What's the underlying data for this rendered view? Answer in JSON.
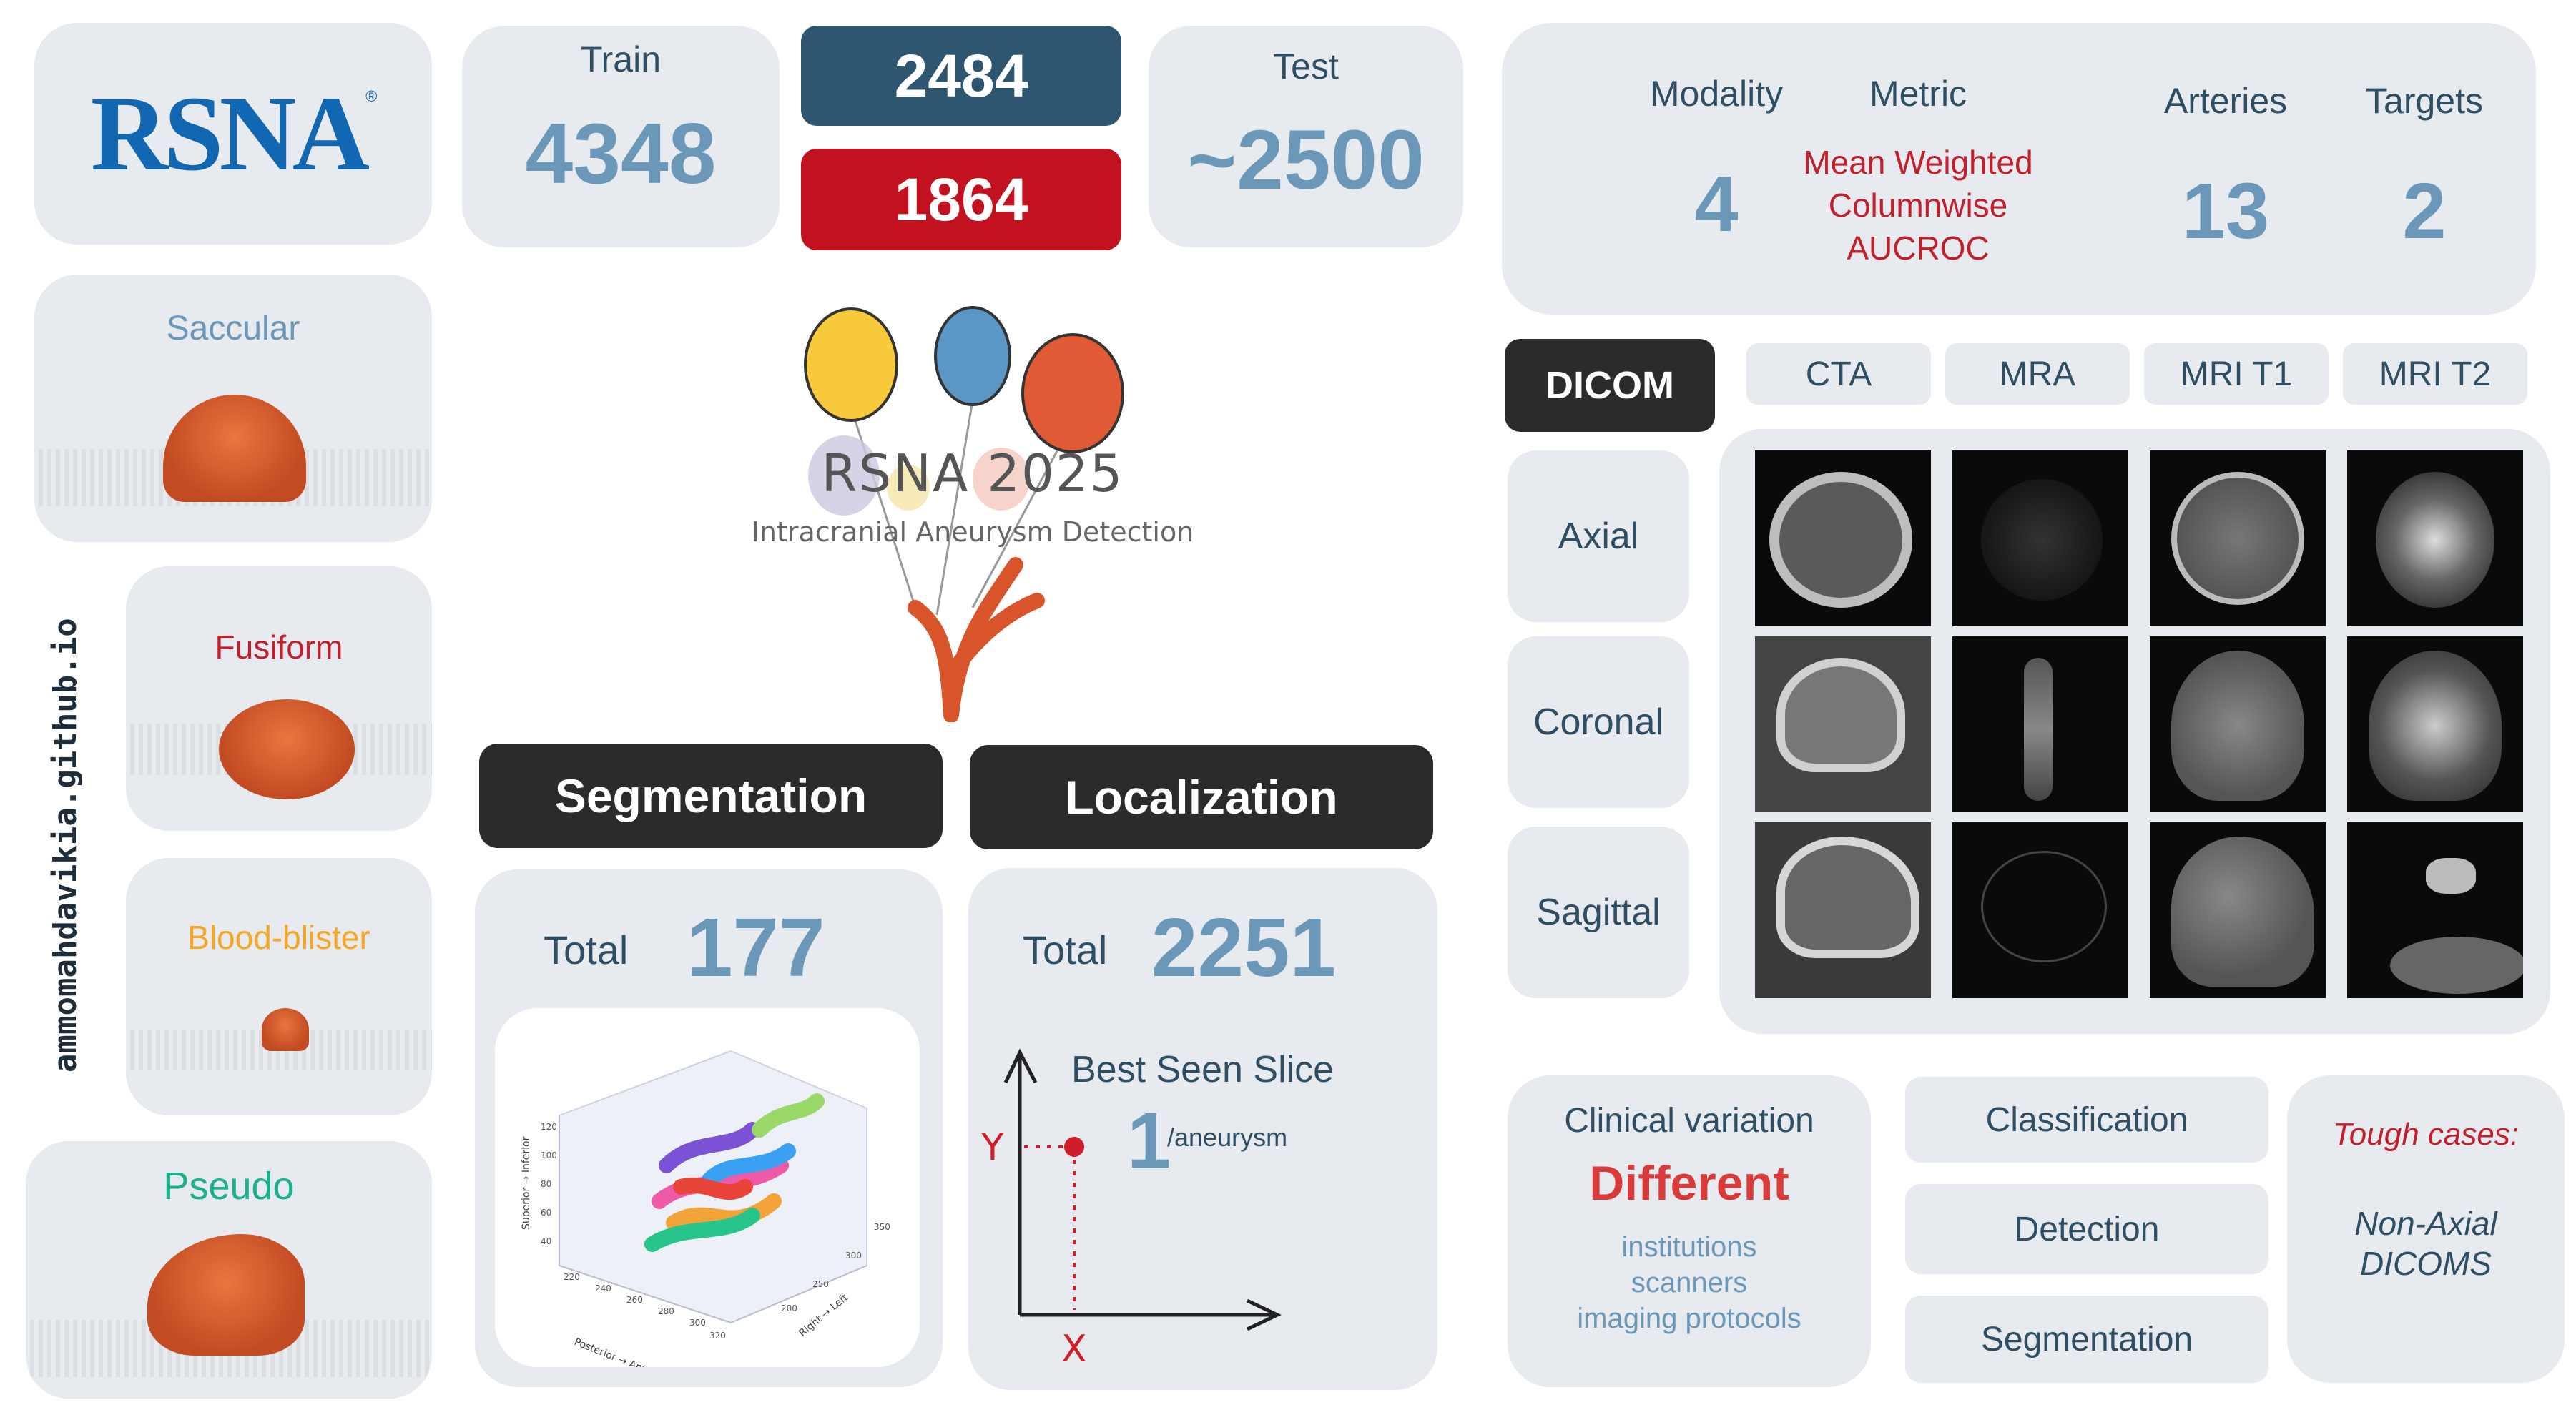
{
  "logo": {
    "text": "RSNA",
    "reg": "®"
  },
  "stats": {
    "train_label": "Train",
    "train_value": "4348",
    "split_a": "2484",
    "split_b": "1864",
    "test_label": "Test",
    "test_value": "~2500"
  },
  "info": {
    "modality_label": "Modality",
    "modality_value": "4",
    "metric_label": "Metric",
    "metric_line1": "Mean Weighted",
    "metric_line2": "Columnwise",
    "metric_line3": "AUCROC",
    "arteries_label": "Arteries",
    "arteries_value": "13",
    "targets_label": "Targets",
    "targets_value": "2"
  },
  "aneurysm_types": {
    "saccular": "Saccular",
    "fusiform": "Fusiform",
    "blood_blister": "Blood-blister",
    "pseudo": "Pseudo"
  },
  "side_link": "ammomahdavikia.github.io",
  "center_logo": {
    "title": "RSNA 2025",
    "subtitle": "Intracranial Aneurysm Detection"
  },
  "tasks": {
    "segmentation": "Segmentation",
    "localization": "Localization"
  },
  "segmentation_panel": {
    "total_label": "Total",
    "total_value": "177",
    "plot_zlabel": "Superior → Inferior",
    "plot_xlabel": "Posterior → Anterior",
    "plot_ylabel": "Right → Left",
    "z_ticks": [
      "120",
      "100",
      "80",
      "60",
      "40"
    ],
    "x_ticks": [
      "220",
      "240",
      "260",
      "280",
      "300",
      "320"
    ],
    "y_ticks": [
      "350",
      "300",
      "250",
      "200"
    ]
  },
  "localization_panel": {
    "total_label": "Total",
    "total_value": "2251",
    "best_slice_label": "Best Seen Slice",
    "per_value": "1",
    "per_unit": "/aneurysm",
    "axis_y": "Y",
    "axis_x": "X"
  },
  "modality_tabs": [
    "DICOM",
    "CTA",
    "MRA",
    "MRI T1",
    "MRI T2"
  ],
  "planes": [
    "Axial",
    "Coronal",
    "Sagittal"
  ],
  "clinical": {
    "title": "Clinical variation",
    "headline": "Different",
    "items": [
      "institutions",
      "scanners",
      "imaging protocols"
    ]
  },
  "task_list": [
    "Classification",
    "Detection",
    "Segmentation"
  ],
  "tough": {
    "title": "Tough cases:",
    "line1": "Non-Axial",
    "line2": "DICOMS"
  },
  "colors": {
    "card": "#e7eaee",
    "dark": "#2b2b2b",
    "navy": "#2e5670",
    "red": "#c2121f",
    "value_blue": "#6b97b8",
    "crimson": "#c21e2b",
    "orange": "#f5a623",
    "teal": "#1bb08a",
    "rsna_blue": "#1167b1"
  }
}
